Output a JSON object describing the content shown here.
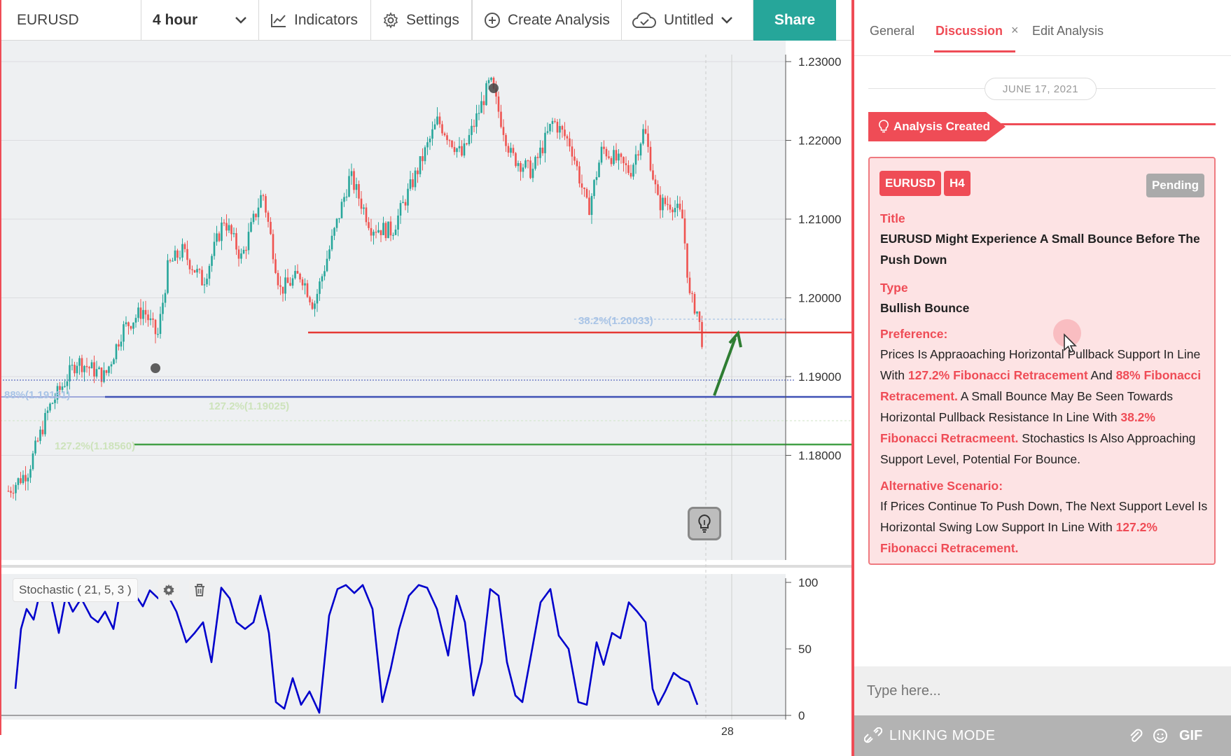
{
  "toolbar": {
    "symbol": "EURUSD",
    "interval": "4 hour",
    "indicators_label": "Indicators",
    "settings_label": "Settings",
    "create_label": "Create Analysis",
    "save_label": "Untitled",
    "share_label": "Share"
  },
  "chart": {
    "price_axis": [
      "1.23000",
      "1.22000",
      "1.21000",
      "1.20000",
      "1.19000",
      "1.18000"
    ],
    "stoch_axis": [
      "100",
      "50",
      "0"
    ],
    "fib_labels": [
      "38.2%(1.20033)",
      "88%(1.19161)",
      "127.2%(1.19025)",
      "127.2%(1.18560)"
    ],
    "stochastic_label": "Stochastic ( 21, 5, 3 )",
    "time_label_partial": "28",
    "colors": {
      "bull": "#26a69a",
      "bear": "#ef5350",
      "support_line": "#e53935",
      "blue_line": "#3f51b5",
      "green_line": "#43a047",
      "stochastic": "#0000cc",
      "arrow": "#2e7d32"
    }
  },
  "panel": {
    "tabs": [
      "General",
      "Discussion",
      "Edit Analysis"
    ],
    "tab_close": "×",
    "date": "JUNE 17, 2021",
    "created_label": "Analysis Created",
    "badges": {
      "symbol": "EURUSD",
      "timeframe": "H4",
      "status": "Pending"
    },
    "title_label": "Title",
    "title_value": "EURUSD Might Experience A Small Bounce Before The Push Down",
    "type_label": "Type",
    "type_value": "Bullish Bounce",
    "preference_label": "Preference:",
    "pref": {
      "p1": "Prices Is Appraoaching Horizontal Pullback Support In Line With ",
      "h1": "127.2% Fibonacci Retracement",
      "p2": " And ",
      "h2": "88% Fibonacci Retracement.",
      "p3": " A Small Bounce May Be Seen Towards Horizontal Pullback Resistance In Line With ",
      "h3": "38.2% Fibonacci Retracmeent.",
      "p4": " Stochastics Is Also Approaching Support Level, Potential For Bounce."
    },
    "alt_label": "Alternative Scenario:",
    "alt": {
      "p1": "If Prices Continue To Push Down, The Next Support Level Is Horizontal Swing Low Support In Line With ",
      "h1": "127.2% Fibonacci Retracement."
    },
    "composer_placeholder": "Type here...",
    "linking_mode": "LINKING MODE",
    "gif_label": "GIF"
  }
}
